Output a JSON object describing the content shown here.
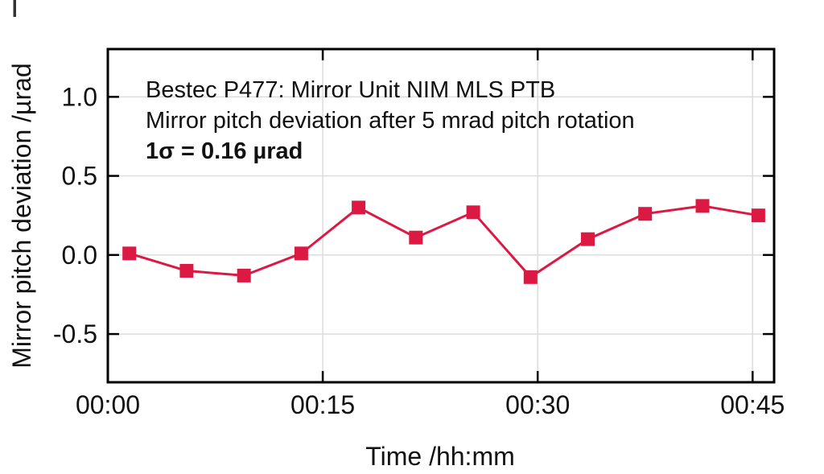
{
  "figure": {
    "background": "#ffffff",
    "annotation": {
      "line1": "Bestec P477: Mirror Unit NIM MLS PTB",
      "line2": "Mirror pitch deviation after 5 mrad pitch rotation",
      "line3": "1σ = 0.16 µrad"
    }
  },
  "chart_data": {
    "type": "line",
    "title": "",
    "xlabel": "Time /hh:mm",
    "ylabel": "Mirror pitch deviation /µrad",
    "series": [
      {
        "name": "mirror-pitch-deviation",
        "marker": "square",
        "x_minutes": [
          1.5,
          5.5,
          9.5,
          13.5,
          17.5,
          21.5,
          25.5,
          29.5,
          33.5,
          37.5,
          41.5,
          45.4
        ],
        "values": [
          0.01,
          -0.1,
          -0.13,
          0.01,
          0.3,
          0.11,
          0.27,
          -0.14,
          0.1,
          0.26,
          0.31,
          0.25
        ]
      }
    ],
    "x_ticks": [
      {
        "value": 0,
        "label": "00:00"
      },
      {
        "value": 15,
        "label": "00:15"
      },
      {
        "value": 30,
        "label": "00:30"
      },
      {
        "value": 45,
        "label": "00:45"
      }
    ],
    "y_ticks": [
      {
        "value": 1.0,
        "label": "1.0"
      },
      {
        "value": 0.5,
        "label": "0.5"
      },
      {
        "value": 0.0,
        "label": "0.0"
      },
      {
        "value": -0.5,
        "label": "-0.5"
      }
    ],
    "x_range_minutes": [
      0,
      46.5
    ],
    "y_range": [
      -0.805,
      1.302
    ],
    "grid": true,
    "legend": false,
    "colors": {
      "series": "#dc1942",
      "grid": "#dcdcdc",
      "frame": "#000000",
      "text": "#111111"
    }
  }
}
